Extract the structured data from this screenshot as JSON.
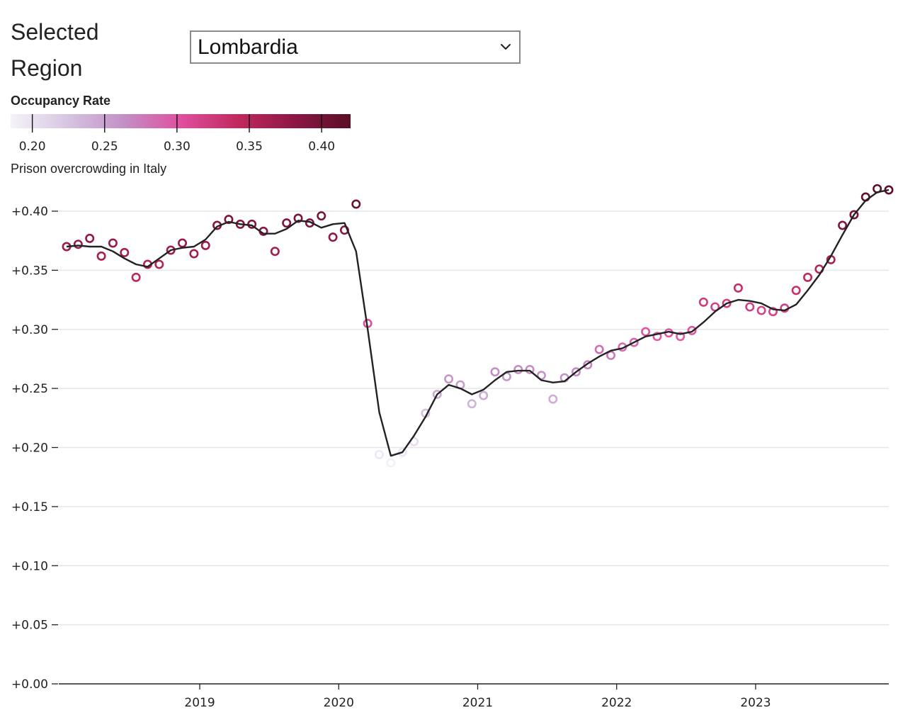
{
  "controls": {
    "region_label": "Selected Region",
    "region_value": "Lombardia"
  },
  "icons": {
    "dropdown": "chevron-down-icon"
  },
  "colors": {
    "scale": [
      "#f5f3f8",
      "#d7c5e2",
      "#c38fc6",
      "#e04f9f",
      "#c1295f",
      "#8d1646",
      "#5a0f25"
    ],
    "trend_line": "#222222",
    "grid": "#e6e6e6"
  },
  "legend": {
    "title": "Occupancy Rate",
    "domain": [
      0.185,
      0.42
    ],
    "ticks": [
      "0.20",
      "0.25",
      "0.30",
      "0.35",
      "0.40"
    ],
    "tick_values": [
      0.2,
      0.25,
      0.3,
      0.35,
      0.4
    ]
  },
  "chart_data": {
    "type": "scatter",
    "title": "Prison overcrowding in Italy",
    "xlabel": "",
    "ylabel": "",
    "x_ticks": [
      "2019",
      "2020",
      "2021",
      "2022",
      "2023"
    ],
    "y_ticks": [
      "+0.00",
      "+0.05",
      "+0.10",
      "+0.15",
      "+0.20",
      "+0.25",
      "+0.30",
      "+0.35",
      "+0.40"
    ],
    "ylim": [
      0,
      0.42
    ],
    "xlim": [
      "2018-01",
      "2023-12"
    ],
    "grid": true,
    "series": [
      {
        "x": [
          "2018-01",
          "2018-02",
          "2018-03",
          "2018-04",
          "2018-05",
          "2018-06",
          "2018-07",
          "2018-08",
          "2018-09",
          "2018-10",
          "2018-11",
          "2018-12",
          "2019-01",
          "2019-02",
          "2019-03",
          "2019-04",
          "2019-05",
          "2019-06",
          "2019-07",
          "2019-08",
          "2019-09",
          "2019-10",
          "2019-11",
          "2019-12",
          "2020-01",
          "2020-02",
          "2020-03",
          "2020-04",
          "2020-05",
          "2020-06",
          "2020-07",
          "2020-08",
          "2020-09",
          "2020-10",
          "2020-11",
          "2020-12",
          "2021-01",
          "2021-02",
          "2021-03",
          "2021-04",
          "2021-05",
          "2021-06",
          "2021-07",
          "2021-08",
          "2021-09",
          "2021-10",
          "2021-11",
          "2021-12",
          "2022-01",
          "2022-02",
          "2022-03",
          "2022-04",
          "2022-05",
          "2022-06",
          "2022-07",
          "2022-08",
          "2022-09",
          "2022-10",
          "2022-11",
          "2022-12",
          "2023-01",
          "2023-02",
          "2023-03",
          "2023-04",
          "2023-05",
          "2023-06",
          "2023-07",
          "2023-08",
          "2023-09",
          "2023-10",
          "2023-11",
          "2023-12"
        ],
        "values": [
          0.37,
          0.372,
          0.377,
          0.362,
          0.373,
          0.365,
          0.344,
          0.355,
          0.355,
          0.367,
          0.373,
          0.364,
          0.371,
          0.388,
          0.393,
          0.389,
          0.389,
          0.383,
          0.366,
          0.39,
          0.394,
          0.39,
          0.396,
          0.378,
          0.384,
          0.406,
          0.305,
          0.194,
          0.187,
          0.196,
          0.205,
          0.229,
          0.245,
          0.258,
          0.253,
          0.237,
          0.244,
          0.264,
          0.26,
          0.266,
          0.266,
          0.261,
          0.241,
          0.259,
          0.264,
          0.27,
          0.283,
          0.278,
          0.285,
          0.289,
          0.298,
          0.294,
          0.297,
          0.294,
          0.299,
          0.323,
          0.319,
          0.322,
          0.335,
          0.319,
          0.316,
          0.315,
          0.318,
          0.333,
          0.344,
          0.351,
          0.359,
          0.388,
          0.397,
          0.412,
          0.419,
          0.418
        ]
      },
      {
        "values": [
          0.37,
          0.371,
          0.37,
          0.37,
          0.366,
          0.36,
          0.355,
          0.353,
          0.36,
          0.367,
          0.369,
          0.37,
          0.376,
          0.387,
          0.391,
          0.389,
          0.388,
          0.381,
          0.381,
          0.385,
          0.392,
          0.391,
          0.386,
          0.389,
          0.39,
          0.366,
          0.3,
          0.23,
          0.193,
          0.196,
          0.21,
          0.226,
          0.245,
          0.253,
          0.25,
          0.245,
          0.249,
          0.257,
          0.264,
          0.265,
          0.265,
          0.257,
          0.255,
          0.256,
          0.264,
          0.271,
          0.277,
          0.282,
          0.284,
          0.289,
          0.294,
          0.296,
          0.298,
          0.296,
          0.298,
          0.306,
          0.315,
          0.322,
          0.325,
          0.324,
          0.322,
          0.317,
          0.316,
          0.321,
          0.333,
          0.346,
          0.362,
          0.38,
          0.397,
          0.409,
          0.416,
          0.418
        ]
      }
    ]
  }
}
